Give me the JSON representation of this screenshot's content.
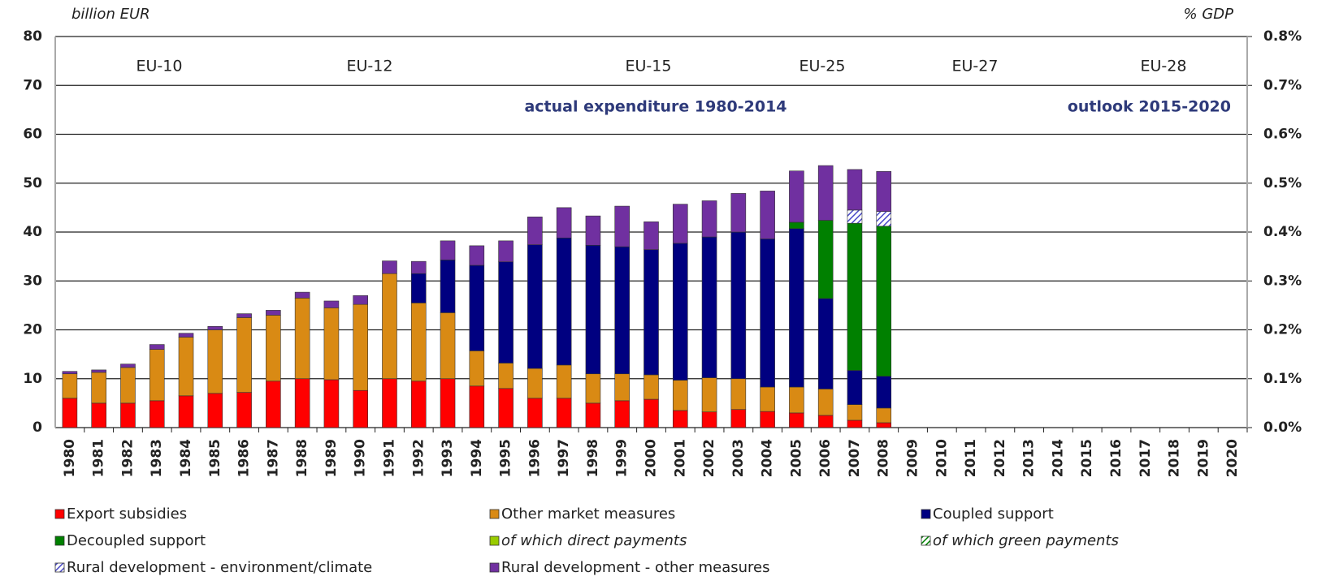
{
  "chart_data": {
    "type": "stacked_bar",
    "y_label": "billion EUR",
    "y2_label": "% GDP",
    "annotations": [
      "EU-10",
      "EU-12",
      "EU-15",
      "EU-25",
      "EU-27",
      "EU-28",
      "actual expenditure 1980-2014",
      "outlook 2015-2020"
    ],
    "categories": [
      "1980",
      "1981",
      "1982",
      "1983",
      "1984",
      "1985",
      "1986",
      "1987",
      "1988",
      "1989",
      "1990",
      "1991",
      "1992",
      "1993",
      "1994",
      "1995",
      "1996",
      "1997",
      "1998",
      "1999",
      "2000",
      "2001",
      "2002",
      "2003",
      "2004",
      "2005",
      "2006",
      "2007",
      "2008",
      "2009",
      "2010",
      "2011",
      "2012",
      "2013",
      "2014",
      "2015",
      "2016",
      "2017",
      "2018",
      "2019",
      "2020"
    ],
    "series": [
      {
        "name": "Export subsidies",
        "color": "#ff0000",
        "values": [
          6,
          5,
          5,
          5.5,
          6.5,
          7,
          7.2,
          9.5,
          10,
          9.8,
          7.6,
          10,
          9.5,
          10,
          8.5,
          8,
          6,
          6,
          5,
          5.5,
          5.8,
          3.5,
          3.2,
          3.7,
          3.3,
          3,
          2.5,
          1.5,
          1,
          null,
          null,
          null,
          null,
          null,
          null,
          null,
          null,
          null,
          null,
          null,
          null
        ]
      },
      {
        "name": "Other market measures",
        "color": "#d98a14",
        "values": [
          5,
          6.3,
          7.3,
          10.5,
          12,
          13,
          15.3,
          13.5,
          16.5,
          14.7,
          17.6,
          21.5,
          16,
          13.5,
          7.2,
          5.2,
          6.1,
          6.8,
          6,
          5.5,
          5,
          6.2,
          7,
          6.3,
          5,
          5.3,
          5.4,
          3.2,
          3,
          null,
          null,
          null,
          null,
          null,
          null,
          null,
          null,
          null,
          null,
          null,
          null
        ]
      },
      {
        "name": "Coupled support",
        "color": "#000080",
        "values": [
          0,
          0,
          0,
          0,
          0,
          0,
          0,
          0,
          0,
          0,
          0,
          0,
          6,
          10.8,
          17.5,
          20.7,
          25.3,
          26,
          26.3,
          26,
          25.6,
          28,
          28.8,
          30,
          30.3,
          32.4,
          18.5,
          7,
          6.5,
          null,
          null,
          null,
          null,
          null,
          null,
          null,
          null,
          null,
          null,
          null,
          null
        ]
      },
      {
        "name": "Decoupled support",
        "color": "#008000",
        "values": [
          0,
          0,
          0,
          0,
          0,
          0,
          0,
          0,
          0,
          0,
          0,
          0,
          0,
          0,
          0,
          0,
          0,
          0,
          0,
          0,
          0,
          0,
          0,
          0,
          0,
          1.3,
          16,
          30.1,
          30.7,
          null,
          null,
          null,
          null,
          null,
          null,
          null,
          null,
          null,
          null,
          null,
          null
        ]
      },
      {
        "name": "of which direct payments",
        "color": "#99cc00",
        "font_style": "italic",
        "values": [
          null,
          null,
          null,
          null,
          null,
          null,
          null,
          null,
          null,
          null,
          null,
          null,
          null,
          null,
          null,
          null,
          null,
          null,
          null,
          null,
          null,
          null,
          null,
          null,
          null,
          null,
          null,
          null,
          null,
          null,
          null,
          null,
          null,
          null,
          null,
          null,
          null,
          null,
          null,
          null,
          null
        ]
      },
      {
        "name": "of which green payments",
        "color": "#008000",
        "hatch": true,
        "font_style": "italic",
        "values": [
          null,
          null,
          null,
          null,
          null,
          null,
          null,
          null,
          null,
          null,
          null,
          null,
          null,
          null,
          null,
          null,
          null,
          null,
          null,
          null,
          null,
          null,
          null,
          null,
          null,
          null,
          null,
          null,
          null,
          null,
          null,
          null,
          null,
          null,
          null,
          null,
          null,
          null,
          null,
          null,
          null
        ]
      },
      {
        "name": "Rural development - environment/climate",
        "color": "#4b4bc8",
        "hatch": true,
        "values": [
          0,
          0,
          0,
          0,
          0,
          0,
          0,
          0,
          0,
          0,
          0,
          0,
          0,
          0,
          0,
          0,
          0,
          0,
          0,
          0,
          0,
          0,
          0,
          0,
          0,
          0,
          0,
          2.7,
          3,
          null,
          null,
          null,
          null,
          null,
          null,
          null,
          null,
          null,
          null,
          null,
          null
        ]
      },
      {
        "name": "Rural development - other measures",
        "color": "#7030a0",
        "values": [
          0.5,
          0.5,
          0.7,
          1,
          0.8,
          0.7,
          0.8,
          1,
          1.2,
          1.4,
          1.8,
          2.6,
          2.5,
          3.9,
          4,
          4.3,
          5.7,
          6.2,
          6,
          8.3,
          5.7,
          8,
          7.4,
          7.9,
          9.8,
          10.5,
          11.2,
          8.3,
          8.2,
          null,
          null,
          null,
          null,
          null,
          null,
          null,
          null,
          null,
          null,
          null,
          null
        ]
      }
    ],
    "ylim": [
      0,
      80
    ],
    "yticks": [
      0,
      10,
      20,
      30,
      40,
      50,
      60,
      70,
      80
    ],
    "y2lim": [
      0,
      0.8
    ],
    "y2ticks": [
      {
        "value": 0,
        "label": "0.0%"
      },
      {
        "value": 0.1,
        "label": "0.1%"
      },
      {
        "value": 0.2,
        "label": "0.2%"
      },
      {
        "value": 0.3,
        "label": "0.3%"
      },
      {
        "value": 0.4,
        "label": "0.4%"
      },
      {
        "value": 0.5,
        "label": "0.5%"
      },
      {
        "value": 0.6,
        "label": "0.6%"
      },
      {
        "value": 0.7,
        "label": "0.7%"
      },
      {
        "value": 0.8,
        "label": "0.8%"
      }
    ],
    "grid": true
  }
}
